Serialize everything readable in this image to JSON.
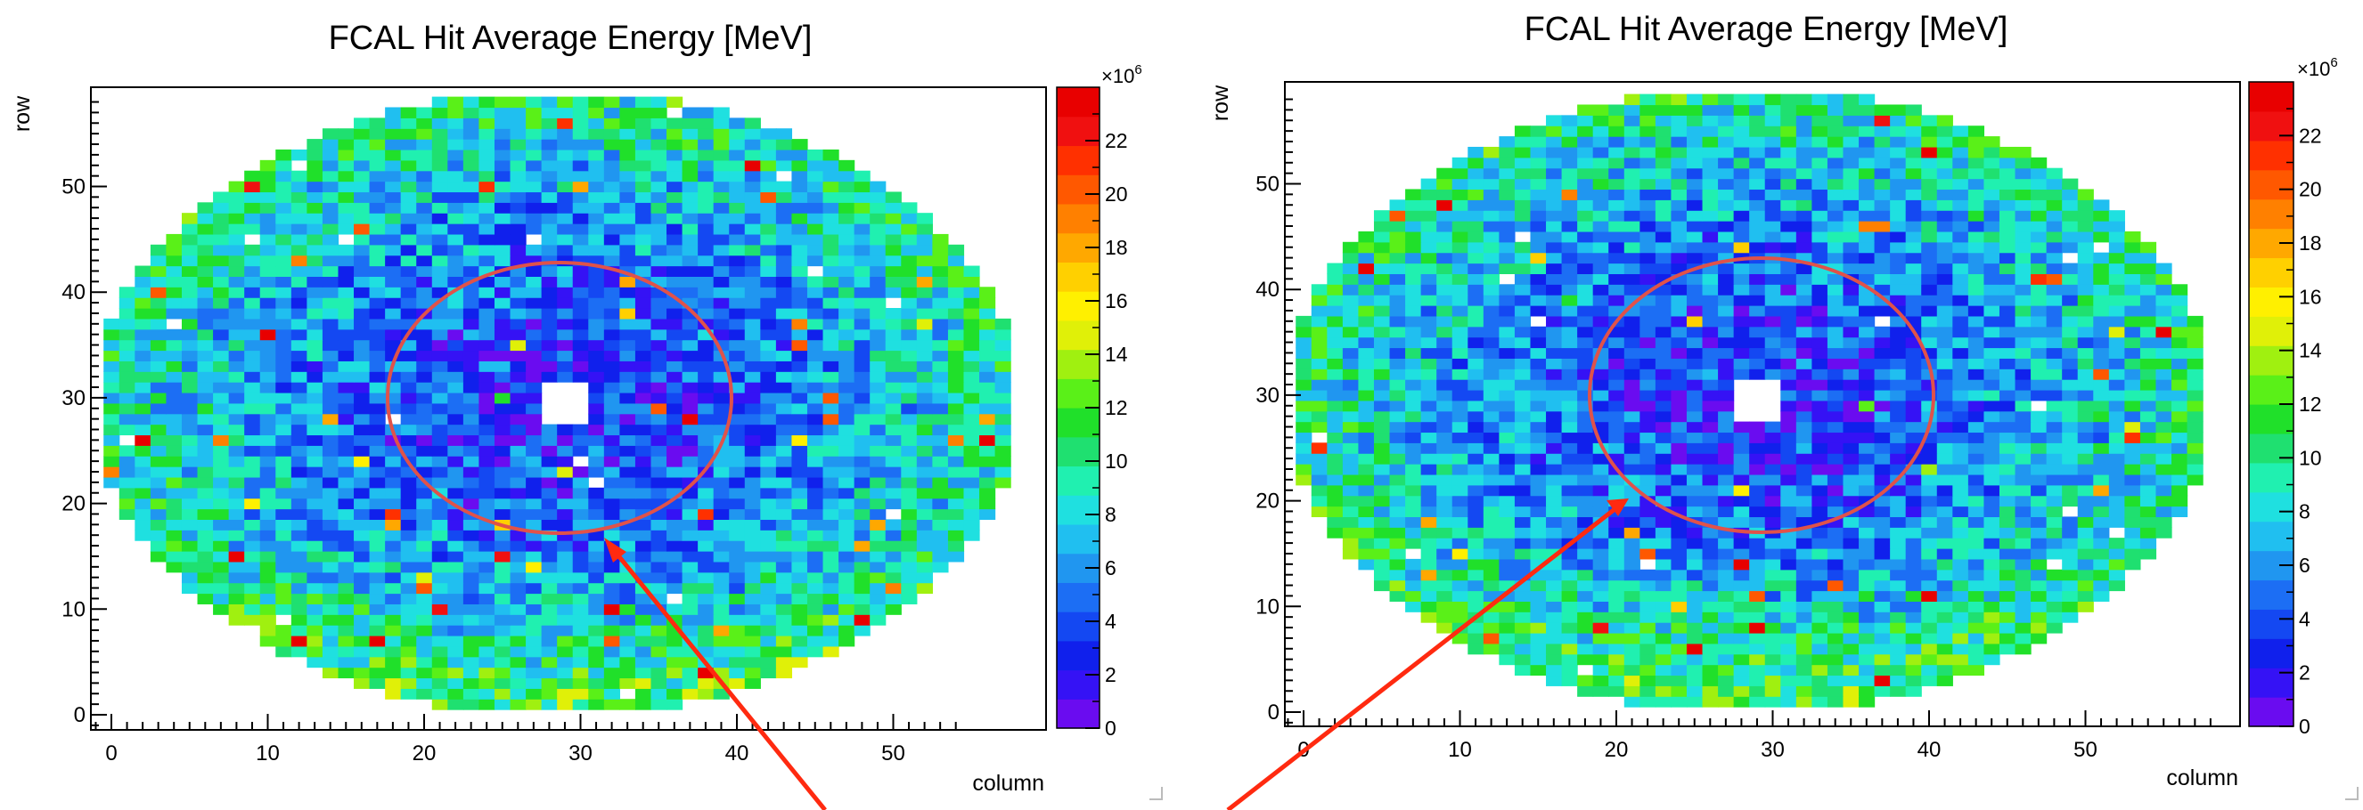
{
  "chart_data": [
    {
      "type": "heatmap",
      "title": "FCAL Hit Average Energy [MeV]",
      "xlabel": "column",
      "ylabel": "row",
      "xlim": [
        -1,
        59
      ],
      "ylim": [
        -1,
        59
      ],
      "x_ticks": [
        "0",
        "10",
        "20",
        "30",
        "40",
        "50"
      ],
      "y_ticks": [
        "0",
        "10",
        "20",
        "30",
        "40",
        "50"
      ],
      "colorbar": {
        "exponent_label": "×10",
        "exponent_power": "6",
        "range": [
          0,
          24
        ],
        "ticks": [
          "0",
          "2",
          "4",
          "6",
          "8",
          "10",
          "12",
          "14",
          "16",
          "18",
          "20",
          "22"
        ]
      },
      "grid": {
        "columns": 59,
        "rows": 59,
        "detector_center": [
          28.5,
          29.5
        ],
        "detector_radius_cells": 29.5,
        "beam_hole": {
          "column": [
            28,
            30
          ],
          "row": [
            28,
            31
          ]
        }
      },
      "annotation": {
        "type": "ellipse",
        "color": "#e0524a",
        "center": [
          28.5,
          29.5
        ],
        "radius_columns": 11,
        "radius_rows": 13
      }
    },
    {
      "type": "heatmap",
      "title": "FCAL Hit Average Energy [MeV]",
      "xlabel": "column",
      "ylabel": "row",
      "xlim": [
        -1,
        59
      ],
      "ylim": [
        -1,
        59
      ],
      "x_ticks": [
        "0",
        "10",
        "20",
        "30",
        "40",
        "50"
      ],
      "y_ticks": [
        "0",
        "10",
        "20",
        "30",
        "40",
        "50"
      ],
      "colorbar": {
        "exponent_label": "×10",
        "exponent_power": "6",
        "range": [
          0,
          24
        ],
        "ticks": [
          "0",
          "2",
          "4",
          "6",
          "8",
          "10",
          "12",
          "14",
          "16",
          "18",
          "20",
          "22"
        ]
      },
      "grid": {
        "columns": 59,
        "rows": 59,
        "detector_center": [
          28.5,
          29.5
        ],
        "detector_radius_cells": 29.5,
        "beam_hole": {
          "column": [
            28,
            30
          ],
          "row": [
            28,
            31
          ]
        }
      },
      "annotation": {
        "type": "ellipse",
        "color": "#e0524a",
        "center": [
          28.5,
          29.5
        ],
        "radius_columns": 11,
        "radius_rows": 13
      }
    }
  ],
  "arrows_color": "#ff2a10",
  "palette": [
    "#6a0cf0",
    "#3512f5",
    "#1020ec",
    "#1448f2",
    "#1c6ef4",
    "#2096f0",
    "#20bff0",
    "#1fe0e0",
    "#20f0b0",
    "#1fe070",
    "#20e02a",
    "#5af018",
    "#a0f010",
    "#e0f008",
    "#fff000",
    "#ffd000",
    "#ffa800",
    "#ff8000",
    "#ff5800",
    "#ff3000",
    "#f01010",
    "#e80000"
  ]
}
